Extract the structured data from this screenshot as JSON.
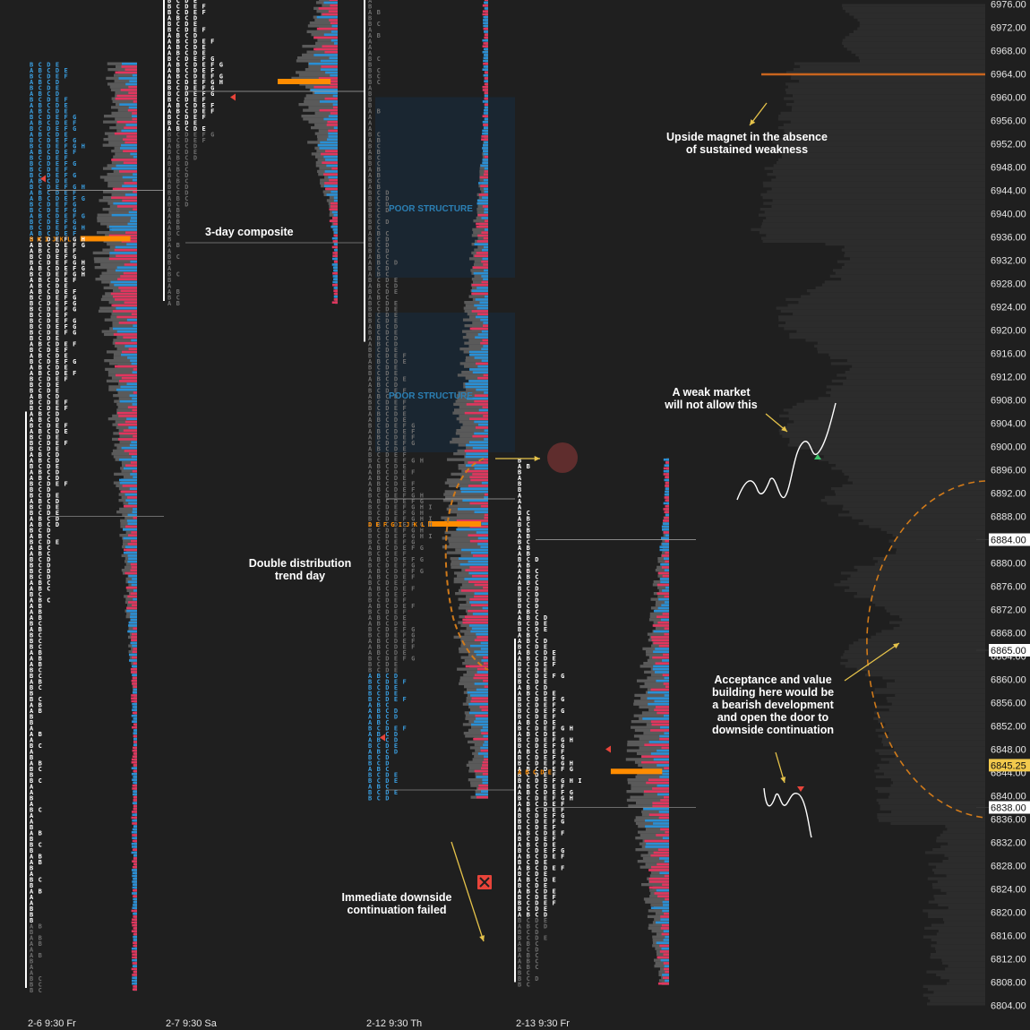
{
  "chart_data": {
    "type": "market-profile",
    "title": "",
    "y_axis": {
      "min": 6804,
      "max": 6976,
      "step": 4,
      "ticks": [
        6976,
        6972,
        6968,
        6964,
        6960,
        6956,
        6952,
        6948,
        6944,
        6940,
        6936,
        6932,
        6928,
        6924,
        6920,
        6916,
        6912,
        6908,
        6904,
        6900,
        6896,
        6892,
        6888,
        6884,
        6880,
        6876,
        6872,
        6868,
        6864,
        6860,
        6856,
        6852,
        6848,
        6844,
        6840,
        6836,
        6832,
        6828,
        6824,
        6820,
        6816,
        6812,
        6808,
        6804
      ],
      "tick_labels": [
        "6976.00",
        "6972.00",
        "6968.00",
        "6964.00",
        "6960.00",
        "6956.00",
        "6952.00",
        "6948.00",
        "6944.00",
        "6940.00",
        "6936.00",
        "6932.00",
        "6928.00",
        "6924.00",
        "6920.00",
        "6916.00",
        "6912.00",
        "6908.00",
        "6904.00",
        "6900.00",
        "6896.00",
        "6892.00",
        "6888.00",
        "6884.00",
        "6880.00",
        "6876.00",
        "6872.00",
        "6868.00",
        "6864.00",
        "6860.00",
        "6856.00",
        "6852.00",
        "6848.00",
        "6844.00",
        "6840.00",
        "6836.00",
        "6832.00",
        "6828.00",
        "6824.00",
        "6820.00",
        "6816.00",
        "6812.00",
        "6808.00",
        "6804.00"
      ],
      "highlighted": [
        {
          "value": 6884,
          "label": "6884.00",
          "style": "box"
        },
        {
          "value": 6865,
          "label": "6865.00",
          "style": "box"
        },
        {
          "value": 6845.25,
          "label": "6845.25",
          "style": "current",
          "color": "#f2c94c"
        },
        {
          "value": 6838,
          "label": "6838.00",
          "style": "box"
        }
      ]
    },
    "sessions": [
      {
        "name": "2-6",
        "label": "2-6  9:30 Fr",
        "low": 6807,
        "high": 6966,
        "poc": 6936,
        "vah": 6944,
        "val": 6888,
        "ib_high": 6906,
        "ib_low": 6807,
        "poc_letters": "G H I J K L"
      },
      {
        "name": "2-7",
        "label": "2-7  9:30 Sa",
        "low": 6925,
        "high": 6977,
        "poc": 6963,
        "vah": 6961,
        "val": 6935,
        "ib_high": 6977,
        "ib_low": 6925,
        "poc_letters": ""
      },
      {
        "name": "2-12",
        "label": "2-12  9:30 Th",
        "low": 6840,
        "high": 6977,
        "poc": 6887,
        "vah": 6891,
        "val": 6841,
        "ib_high": 6977,
        "ib_low": 6918,
        "poc_letters": "D E F G I J K L"
      },
      {
        "name": "2-13",
        "label": "2-13  9:30 Fr",
        "low": 6808,
        "high": 6898,
        "poc": 6844.5,
        "vah": 6884,
        "val": 6838,
        "ib_high": 6867,
        "ib_low": 6808,
        "poc_letters": "A B C D E"
      }
    ],
    "composite": {
      "name": "3-day composite",
      "level_line": 6964,
      "level_color": "#c8641e"
    },
    "zones": [
      {
        "label": "POOR STRUCTURE",
        "from": 6929,
        "to": 6960
      },
      {
        "label": "POOR STRUCTURE",
        "from": 6899,
        "to": 6923
      }
    ],
    "annotations": [
      "Upside magnet in the absence of sustained weakness",
      "A weak market will not allow this",
      "Acceptance and value building here would be a bearish development and open the door to downside continuation",
      "Double distribution trend day",
      "Immediate downside continuation failed",
      "3-day composite"
    ]
  },
  "labels": {
    "composite": "3-day composite",
    "poor1": "POOR STRUCTURE",
    "poor2": "POOR STRUCTURE",
    "magnet_1": "Upside magnet in the absence",
    "magnet_2": "of sustained weakness",
    "weak_1": "A weak market",
    "weak_2": "will not allow this",
    "accept_1": "Acceptance and value",
    "accept_2": "building here would be",
    "accept_3": "a bearish development",
    "accept_4": "and open the door to",
    "accept_5": "downside continuation",
    "double_1": "Double distribution",
    "double_2": "trend day",
    "failed_1": "Immediate downside",
    "failed_2": "continuation failed"
  },
  "colors": {
    "background": "#1f1f1f",
    "buy": "#2a8fd4",
    "sell": "#e0365e",
    "volume": "#5a5a5a",
    "poc": "#ff8c00",
    "annotation_arrow": "#e6c34a",
    "dashed_orange": "#d07a1a",
    "magnet_line": "#c8641e",
    "tpo_white": "#ffffff",
    "tpo_dim": "#6e6e6e",
    "tpo_blue": "#3a9ee0",
    "tpo_orange": "#ff8c00",
    "current_price_bg": "#f2c94c"
  },
  "icons": {
    "reject": "x-mark-icon",
    "sell_marker": "triangle-left-icon"
  }
}
